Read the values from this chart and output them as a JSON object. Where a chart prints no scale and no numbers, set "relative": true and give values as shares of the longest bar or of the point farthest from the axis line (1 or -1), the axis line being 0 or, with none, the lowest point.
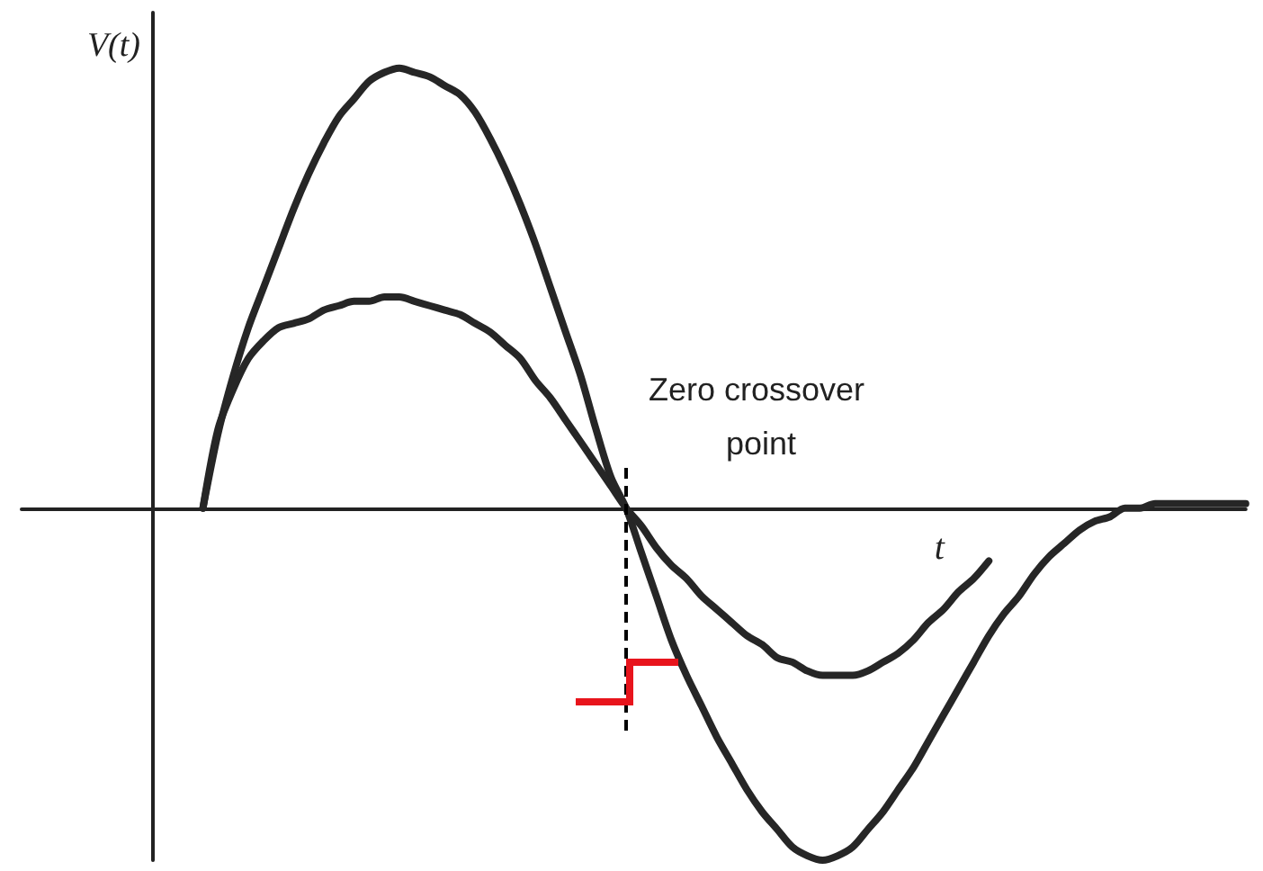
{
  "chart_data": {
    "type": "line",
    "relative": true,
    "xlabel": "t",
    "ylabel": "V(t)",
    "categories": [
      null,
      null,
      null,
      null,
      null,
      null,
      null,
      null,
      null,
      null,
      null,
      null,
      null,
      null,
      null,
      null,
      null,
      null,
      null,
      null,
      null,
      null,
      null,
      null,
      null,
      null,
      null,
      null,
      null,
      null,
      null,
      null,
      null,
      null,
      null,
      null,
      null,
      null,
      null,
      null,
      null,
      null,
      null,
      null,
      null,
      null,
      null,
      null,
      null,
      null,
      null,
      null,
      null,
      null,
      null,
      null,
      null,
      null,
      null,
      null,
      null,
      null,
      null,
      null,
      null,
      null,
      null,
      null,
      null,
      null,
      null,
      null,
      null,
      null,
      null,
      null,
      null,
      null,
      null,
      null,
      null,
      null
    ],
    "series": [
      {
        "color": "#262626",
        "values": [
          null,
          null,
          null,
          null,
          null,
          null,
          null,
          null,
          null,
          null,
          null,
          null,
          0,
          0.17,
          0.3,
          0.41,
          0.5,
          0.59,
          0.68,
          0.76,
          0.83,
          0.89,
          0.93,
          0.97,
          0.99,
          1.0,
          0.99,
          0.98,
          0.96,
          0.94,
          0.9,
          0.84,
          0.77,
          0.69,
          0.6,
          0.5,
          0.4,
          0.3,
          0.18,
          0.07,
          0,
          -0.1,
          -0.2,
          -0.3,
          -0.38,
          -0.45,
          -0.52,
          -0.58,
          -0.64,
          -0.69,
          -0.73,
          -0.77,
          -0.79,
          -0.8,
          -0.79,
          -0.77,
          -0.73,
          -0.69,
          -0.64,
          -0.59,
          -0.53,
          -0.47,
          -0.41,
          -0.35,
          -0.29,
          -0.24,
          -0.2,
          -0.15,
          -0.11,
          -0.08,
          -0.05,
          -0.03,
          -0.02,
          0,
          0,
          0.01,
          0.01,
          0.01,
          0.01,
          0.01,
          0.01,
          0.01
        ]
      },
      {
        "color": "#262626",
        "values": [
          null,
          null,
          null,
          null,
          null,
          null,
          null,
          null,
          null,
          null,
          null,
          null,
          0,
          0.18,
          0.27,
          0.34,
          0.38,
          0.41,
          0.42,
          0.43,
          0.45,
          0.46,
          0.47,
          0.47,
          0.48,
          0.48,
          0.47,
          0.46,
          0.45,
          0.44,
          0.42,
          0.4,
          0.37,
          0.34,
          0.29,
          0.25,
          0.2,
          0.15,
          0.1,
          0.05,
          0,
          -0.04,
          -0.09,
          -0.13,
          -0.16,
          -0.2,
          -0.23,
          -0.26,
          -0.29,
          -0.31,
          -0.34,
          -0.35,
          -0.37,
          -0.38,
          -0.38,
          -0.38,
          -0.37,
          -0.35,
          -0.33,
          -0.3,
          -0.26,
          -0.23,
          -0.19,
          -0.16,
          -0.12,
          null,
          null,
          null,
          null,
          null,
          null,
          null,
          null,
          null,
          null,
          null,
          null,
          null,
          null,
          null,
          null,
          null
        ]
      }
    ],
    "marker": "none",
    "line_style": "solid",
    "tick_labels": false,
    "annotations": [
      "Zero crossover point"
    ]
  }
}
